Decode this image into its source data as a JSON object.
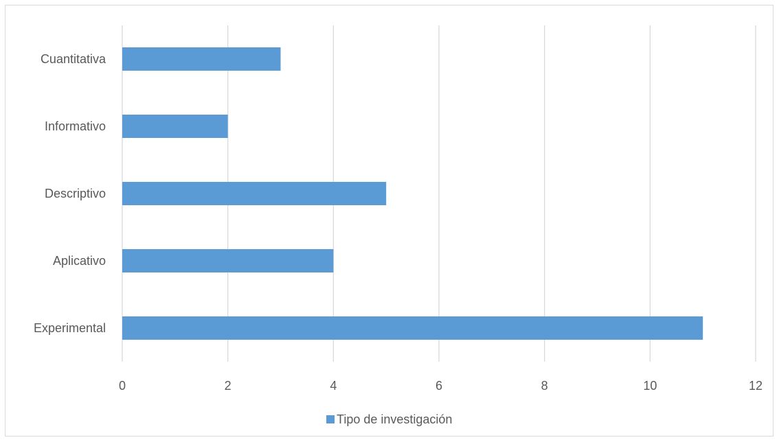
{
  "chart_data": {
    "type": "bar",
    "orientation": "horizontal",
    "categories": [
      "Experimental",
      "Aplicativo",
      "Descriptivo",
      "Informativo",
      "Cuantitativa"
    ],
    "series": [
      {
        "name": "Tipo de investigación",
        "values": [
          11,
          4,
          5,
          2,
          3
        ],
        "color": "#5b9bd5"
      }
    ],
    "xlim": [
      0,
      12
    ],
    "x_ticks": [
      0,
      2,
      4,
      6,
      8,
      10,
      12
    ],
    "grid": "vertical",
    "legend_position": "bottom",
    "title": "",
    "xlabel": "",
    "ylabel": ""
  },
  "colors": {
    "bar": "#5b9bd5",
    "grid": "#d9d9d9",
    "text": "#595959",
    "border": "#d9d9d9"
  }
}
